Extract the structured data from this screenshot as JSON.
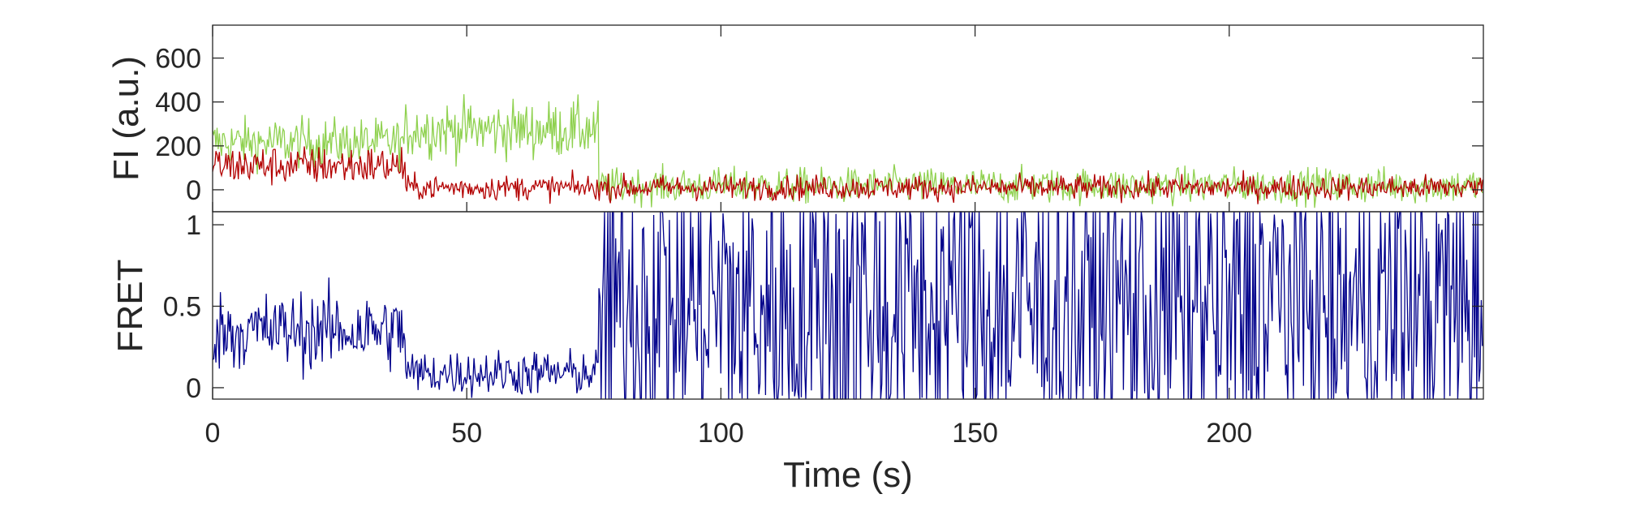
{
  "chart_data": [
    {
      "type": "line",
      "ylabel": "FI (a.u.)",
      "xlim": [
        0,
        250
      ],
      "ylim": [
        -100,
        750
      ],
      "yticks": [
        0,
        200,
        400,
        600
      ],
      "colors": {
        "donor": "#8fd14f",
        "acceptor": "#b30000"
      },
      "segments": {
        "donor": [
          {
            "t0": 0,
            "t1": 38,
            "mean": 215,
            "noise": 55
          },
          {
            "t0": 38,
            "t1": 76,
            "mean": 275,
            "noise": 65
          },
          {
            "t0": 76,
            "t1": 250,
            "mean": 18,
            "noise": 40
          }
        ],
        "acceptor": [
          {
            "t0": 0,
            "t1": 38,
            "mean": 110,
            "noise": 45
          },
          {
            "t0": 38,
            "t1": 250,
            "mean": 10,
            "noise": 28
          }
        ]
      }
    },
    {
      "type": "line",
      "xlabel": "Time (s)",
      "ylabel": "FRET",
      "xlim": [
        0,
        250
      ],
      "ylim": [
        -0.07,
        1.08
      ],
      "xticks": [
        0,
        50,
        100,
        150,
        200
      ],
      "yticks": [
        0,
        0.5,
        1
      ],
      "ytick_labels": [
        "0",
        "0.5",
        "1"
      ],
      "colors": {
        "fret": "#00008b"
      },
      "segments": [
        {
          "t0": 0,
          "t1": 38,
          "mean": 0.35,
          "noise": 0.12
        },
        {
          "t0": 38,
          "t1": 76,
          "mean": 0.09,
          "noise": 0.07
        },
        {
          "t0": 76,
          "t1": 250,
          "mean": 0.5,
          "noise": 0.6
        }
      ]
    }
  ]
}
